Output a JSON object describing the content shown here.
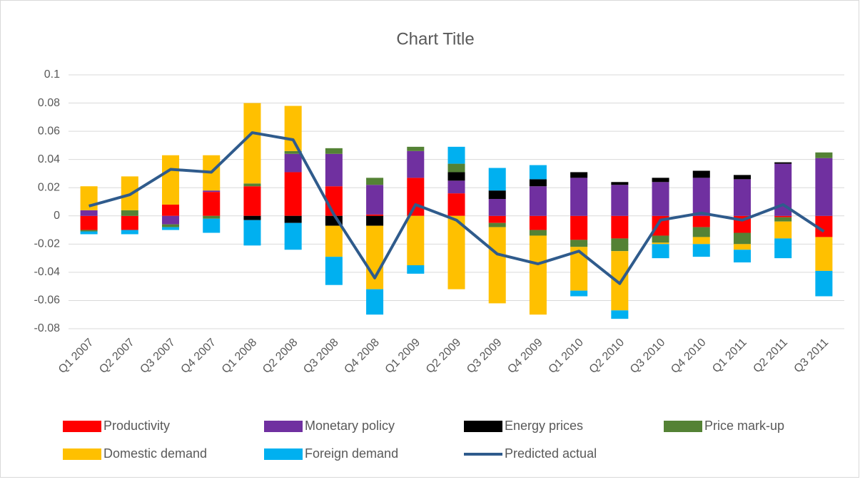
{
  "chart_data": {
    "type": "bar",
    "stacked": true,
    "title": "Chart Title",
    "categories": [
      "Q1 2007",
      "Q2 2007",
      "Q3 2007",
      "Q4 2007",
      "Q1 2008",
      "Q2 2008",
      "Q3 2008",
      "Q4 2008",
      "Q1 2009",
      "Q2 2009",
      "Q3 2009",
      "Q4 2009",
      "Q1 2010",
      "Q2 2010",
      "Q3 2010",
      "Q4 2010",
      "Q1 2011",
      "Q2 2011",
      "Q3 2011"
    ],
    "series": [
      {
        "name": "Productivity",
        "color": "#ff0000",
        "values": [
          -0.01,
          -0.01,
          0.008,
          0.017,
          0.021,
          0.031,
          0.021,
          0.001,
          0.027,
          0.016,
          -0.005,
          -0.01,
          -0.017,
          -0.016,
          -0.014,
          -0.008,
          -0.012,
          -0.001,
          -0.015
        ]
      },
      {
        "name": "Monetary policy",
        "color": "#7030a0",
        "values": [
          0.004,
          0,
          -0.006,
          0.001,
          0,
          0.013,
          0.023,
          0.021,
          0.019,
          0.009,
          0.012,
          0.021,
          0.027,
          0.022,
          0.024,
          0.027,
          0.026,
          0.037,
          0.041
        ]
      },
      {
        "name": "Energy prices",
        "color": "#000000",
        "values": [
          0,
          0,
          0,
          0,
          -0.003,
          -0.005,
          -0.007,
          -0.007,
          0,
          0.006,
          0.006,
          0.005,
          0.004,
          0.002,
          0.003,
          0.005,
          0.003,
          0.001,
          0
        ]
      },
      {
        "name": "Price mark-up",
        "color": "#548235",
        "values": [
          -0.001,
          0.004,
          -0.002,
          -0.002,
          0.002,
          0.002,
          0.004,
          0.005,
          0.003,
          0.006,
          -0.003,
          -0.004,
          -0.005,
          -0.009,
          -0.005,
          -0.007,
          -0.008,
          -0.003,
          0.004
        ]
      },
      {
        "name": "Domestic demand",
        "color": "#ffc000",
        "values": [
          0.017,
          0.024,
          0.035,
          0.025,
          0.057,
          0.032,
          -0.022,
          -0.045,
          -0.035,
          -0.052,
          -0.054,
          -0.056,
          -0.031,
          -0.042,
          -0.001,
          -0.005,
          -0.004,
          -0.012,
          -0.024
        ]
      },
      {
        "name": "Foreign demand",
        "color": "#00b0f0",
        "values": [
          -0.002,
          -0.003,
          -0.002,
          -0.01,
          -0.018,
          -0.019,
          -0.02,
          -0.018,
          -0.006,
          0.012,
          0.016,
          0.01,
          -0.004,
          -0.006,
          -0.01,
          -0.009,
          -0.009,
          -0.014,
          -0.018
        ]
      },
      {
        "name": "Predicted actual",
        "type": "line",
        "color": "#2f5b8c",
        "values": [
          0.007,
          0.015,
          0.033,
          0.031,
          0.059,
          0.054,
          0.001,
          -0.044,
          0.008,
          -0.003,
          -0.027,
          -0.034,
          -0.025,
          -0.048,
          -0.003,
          0.002,
          -0.003,
          0.008,
          -0.011
        ]
      }
    ],
    "ylim": [
      -0.08,
      0.1
    ],
    "yticks": [
      -0.08,
      -0.06,
      -0.04,
      -0.02,
      0,
      0.02,
      0.04,
      0.06,
      0.08,
      0.1
    ],
    "grid": true,
    "legend": "bottom"
  }
}
